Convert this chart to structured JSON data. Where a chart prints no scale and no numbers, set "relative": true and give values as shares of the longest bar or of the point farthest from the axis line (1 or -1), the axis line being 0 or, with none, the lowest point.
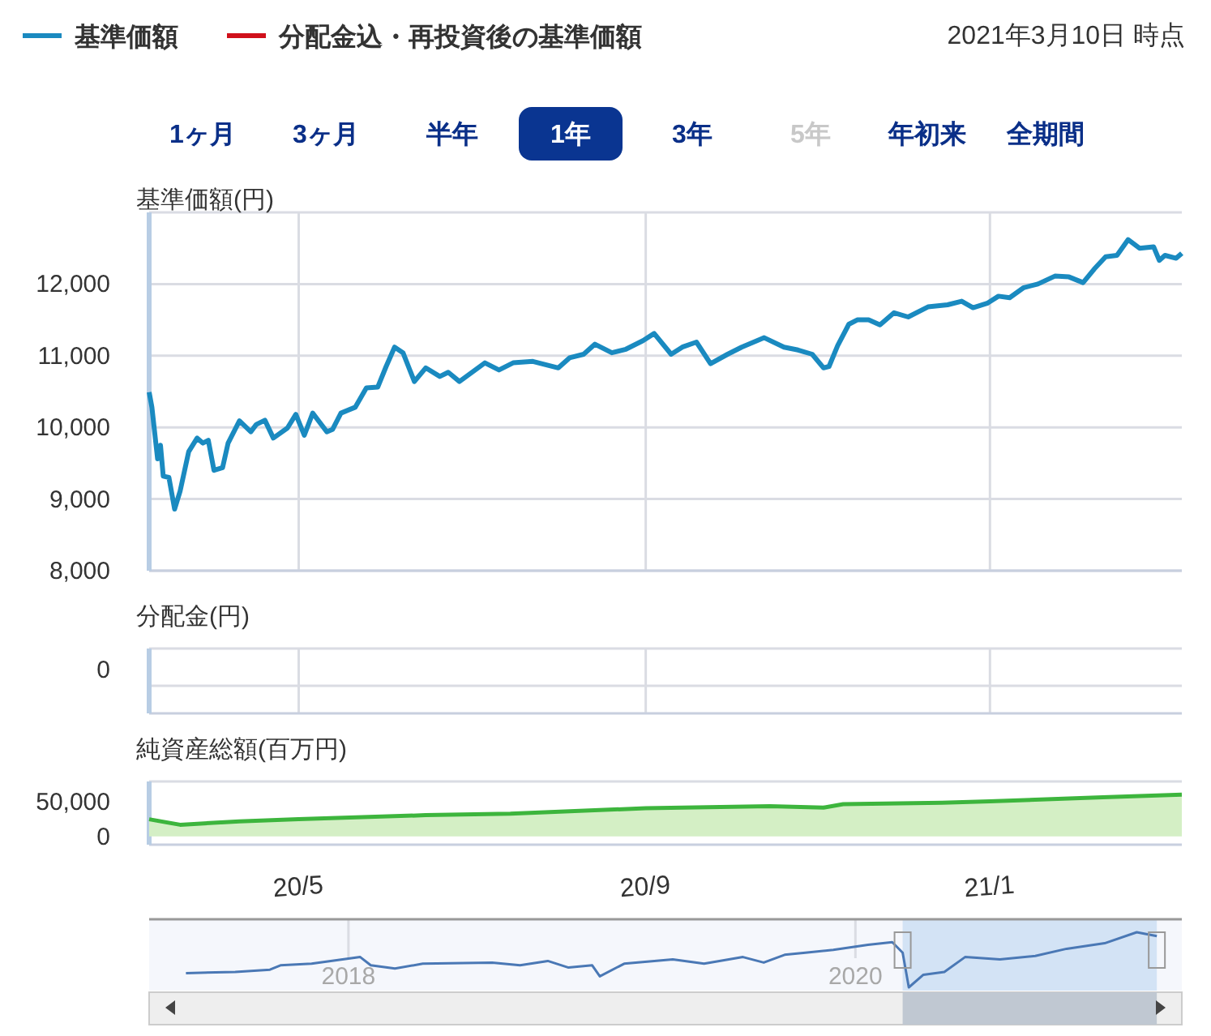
{
  "chart_data": [
    {
      "type": "line",
      "ylabel": "基準価額(円)",
      "legend": "top left",
      "grid": true,
      "tick_labels": "y",
      "xlim": [
        "2020-03-09",
        "2021-03-10"
      ],
      "ylim": [
        8000,
        13000
      ],
      "xticks": [
        {
          "value": "2020-05-01",
          "label": null
        },
        {
          "value": "2020-09-01",
          "label": null
        },
        {
          "value": "2021-01-01",
          "label": null
        }
      ],
      "yticks": [
        {
          "value": 8000,
          "label": "8,000"
        },
        {
          "value": 9000,
          "label": "9,000"
        },
        {
          "value": 10000,
          "label": "10,000"
        },
        {
          "value": 11000,
          "label": "11,000"
        },
        {
          "value": 12000,
          "label": "12,000"
        }
      ],
      "annotations": [
        "2021年3月10日 時点",
        "1ヶ月",
        "3ヶ月",
        "半年",
        "1年",
        "3年",
        "5年",
        "年初来",
        "全期間"
      ],
      "series": [
        {
          "name": "基準価額",
          "color": "#1a8ac0",
          "x": [
            "2020-03-09",
            "2020-03-10",
            "2020-03-12",
            "2020-03-13",
            "2020-03-14",
            "2020-03-16",
            "2020-03-18",
            "2020-03-20",
            "2020-03-23",
            "2020-03-26",
            "2020-03-28",
            "2020-03-30",
            "2020-04-01",
            "2020-04-04",
            "2020-04-06",
            "2020-04-10",
            "2020-04-14",
            "2020-04-16",
            "2020-04-19",
            "2020-04-22",
            "2020-04-27",
            "2020-04-30",
            "2020-05-03",
            "2020-05-06",
            "2020-05-11",
            "2020-05-13",
            "2020-05-16",
            "2020-05-21",
            "2020-05-25",
            "2020-05-29",
            "2020-06-01",
            "2020-06-04",
            "2020-06-07",
            "2020-06-11",
            "2020-06-15",
            "2020-06-20",
            "2020-06-23",
            "2020-06-27",
            "2020-07-06",
            "2020-07-11",
            "2020-07-16",
            "2020-07-23",
            "2020-08-01",
            "2020-08-05",
            "2020-08-10",
            "2020-08-14",
            "2020-08-20",
            "2020-08-25",
            "2020-08-31",
            "2020-09-04",
            "2020-09-10",
            "2020-09-14",
            "2020-09-19",
            "2020-09-24",
            "2020-09-30",
            "2020-10-05",
            "2020-10-13",
            "2020-10-20",
            "2020-10-25",
            "2020-10-30",
            "2020-11-03",
            "2020-11-05",
            "2020-11-08",
            "2020-11-12",
            "2020-11-15",
            "2020-11-19",
            "2020-11-23",
            "2020-11-28",
            "2020-12-03",
            "2020-12-10",
            "2020-12-17",
            "2020-12-22",
            "2020-12-26",
            "2020-12-31",
            "2021-01-04",
            "2021-01-08",
            "2021-01-13",
            "2021-01-18",
            "2021-01-24",
            "2021-01-29",
            "2021-02-03",
            "2021-02-07",
            "2021-02-11",
            "2021-02-15",
            "2021-02-19",
            "2021-02-23",
            "2021-02-28",
            "2021-03-02",
            "2021-03-04",
            "2021-03-08",
            "2021-03-10"
          ],
          "values": [
            10490,
            10280,
            9560,
            9750,
            9320,
            9300,
            8860,
            9110,
            9660,
            9850,
            9780,
            9820,
            9400,
            9440,
            9780,
            10090,
            9940,
            10040,
            10100,
            9850,
            9990,
            10180,
            9890,
            10200,
            9940,
            9970,
            10200,
            10280,
            10550,
            10560,
            10850,
            11120,
            11040,
            10640,
            10830,
            10710,
            10770,
            10640,
            10900,
            10800,
            10900,
            10920,
            10830,
            10970,
            11020,
            11160,
            11040,
            11090,
            11210,
            11310,
            11020,
            11120,
            11190,
            10890,
            11020,
            11120,
            11250,
            11120,
            11080,
            11020,
            10830,
            10850,
            11140,
            11440,
            11500,
            11500,
            11430,
            11600,
            11540,
            11680,
            11710,
            11760,
            11670,
            11730,
            11830,
            11810,
            11950,
            12000,
            12110,
            12100,
            12020,
            12210,
            12380,
            12400,
            12620,
            12500,
            12520,
            12330,
            12400,
            12360,
            12430
          ]
        },
        {
          "name": "分配金込・再投資後の基準価額",
          "color": "#d0101b"
        }
      ]
    },
    {
      "type": "other",
      "ylabel": "分配金(円)",
      "annotations": [
        "0"
      ]
    },
    {
      "type": "area",
      "ylabel": "純資産総額(百万円)",
      "xlim": [
        "2020-03-09",
        "2021-03-10"
      ],
      "ylim": [
        -12000,
        80000
      ],
      "xticks": [
        {
          "value": "2020-05-01",
          "label": "20/5"
        },
        {
          "value": "2020-09-01",
          "label": "20/9"
        },
        {
          "value": "2021-01-01",
          "label": "21/1"
        }
      ],
      "yticks": [
        0,
        {
          "value": 50000,
          "label": "50,000"
        }
      ],
      "series": [
        {
          "color": "#3db53d",
          "x": [
            "2020-03-09",
            "2020-03-20",
            "2020-04-10",
            "2020-05-01",
            "2020-06-15",
            "2020-07-15",
            "2020-09-01",
            "2020-10-15",
            "2020-11-03",
            "2020-11-10",
            "2020-12-15",
            "2021-01-01",
            "2021-02-10",
            "2021-03-10"
          ],
          "values": [
            25000,
            17000,
            22000,
            25000,
            31000,
            33000,
            41000,
            44000,
            42000,
            47000,
            49000,
            51000,
            57000,
            61000
          ]
        }
      ]
    },
    {
      "type": "line",
      "relative": true,
      "grid": "x",
      "xlim": [
        "2017-03-20",
        "2021-04-15"
      ],
      "xticks": [
        {
          "value": "2018-01-01",
          "label": "2018"
        },
        {
          "value": "2020-01-01",
          "label": "2020"
        }
      ],
      "bands": [
        {
          "axis": "x",
          "from": "2020-03-09",
          "to": "2021-03-10",
          "color": "#cfe0f4"
        }
      ],
      "series": [
        {
          "color": "#4a78b5",
          "x": [
            "2017-05-12",
            "2017-07-22",
            "2017-09-10",
            "2017-09-25",
            "2017-11-09",
            "2018-01-18",
            "2018-02-02",
            "2018-03-09",
            "2018-04-18",
            "2018-07-27",
            "2018-09-05",
            "2018-10-15",
            "2018-11-14",
            "2018-12-18",
            "2018-12-29",
            "2019-02-02",
            "2019-04-13",
            "2019-05-28",
            "2019-07-23",
            "2019-08-22",
            "2019-09-21",
            "2019-10-21",
            "2019-11-30",
            "2020-01-19",
            "2020-02-23",
            "2020-03-09",
            "2020-03-18",
            "2020-04-08",
            "2020-05-08",
            "2020-06-07",
            "2020-07-27",
            "2020-09-16",
            "2020-10-31",
            "2020-12-25",
            "2021-02-09",
            "2021-03-10"
          ],
          "values": [
            0.26,
            0.28,
            0.32,
            0.4,
            0.43,
            0.55,
            0.4,
            0.34,
            0.43,
            0.45,
            0.4,
            0.48,
            0.36,
            0.4,
            0.2,
            0.43,
            0.51,
            0.43,
            0.55,
            0.45,
            0.59,
            0.63,
            0.68,
            0.77,
            0.82,
            0.63,
            0,
            0.23,
            0.28,
            0.55,
            0.51,
            0.57,
            0.7,
            0.8,
            1,
            0.93
          ]
        }
      ]
    }
  ]
}
